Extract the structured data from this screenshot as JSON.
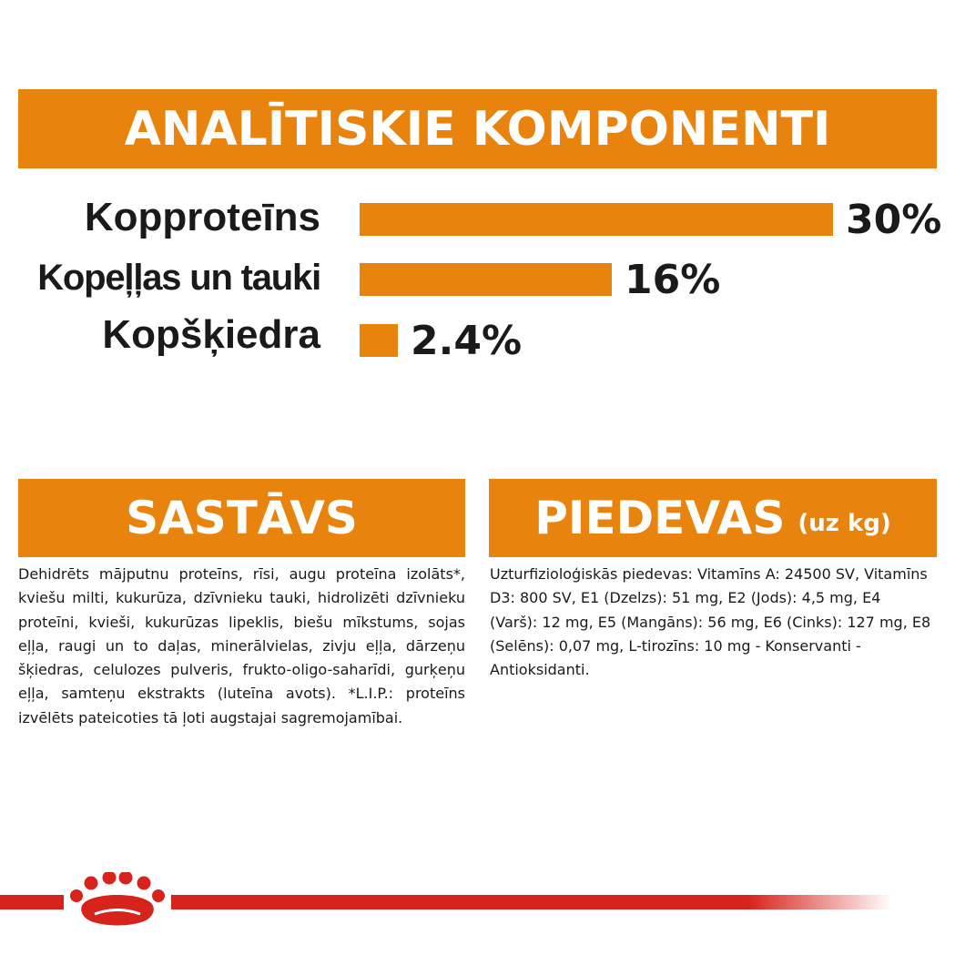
{
  "header": {
    "title": "ANALĪTISKIE KOMPONENTI"
  },
  "chart_data": {
    "type": "bar",
    "orientation": "horizontal",
    "categories": [
      "Kopproteīns",
      "Kopeļļas un tauki",
      "Kopšķiedra"
    ],
    "values": [
      30,
      16,
      2.4
    ],
    "value_labels": [
      "30%",
      "16%",
      "2.4%"
    ],
    "unit": "%",
    "xlim": [
      0,
      30
    ],
    "color": "#e8830d",
    "grid": false
  },
  "sastavs": {
    "title": "SASTĀVS",
    "text": "Dehidrēts mājputnu proteīns, rīsi, augu proteīna izolāts*, kviešu milti, kukurūza, dzīvnieku tauki, hidrolizēti dzīvnieku proteīni, kvieši, kukurūzas lipeklis, biešu mīkstums, sojas eļļa, raugi un to daļas, minerālvielas, zivju eļļa, dārzeņu šķiedras, celulozes pulveris, frukto-oligo-saharīdi, gurķeņu eļļa, samteņu ekstrakts (luteīna avots). *L.I.P.: proteīns izvēlēts pateicoties tā ļoti augstajai sagremojamībai."
  },
  "piedevas": {
    "title": "PIEDEVAS",
    "title_suffix": "(uz kg)",
    "text": "Uzturfizioloģiskās piedevas: Vitamīns A: 24500 SV, Vitamīns D3: 800 SV, E1 (Dzelzs): 51 mg, E2 (Jods): 4,5 mg, E4 (Varš): 12 mg, E5 (Mangāns): 56 mg, E6 (Cinks): 127 mg, E8 (Selēns): 0,07 mg, L-tirozīns: 10 mg - Konservanti - Antioksidanti."
  },
  "footer": {
    "logo_icon": "royal-canin-crown-icon",
    "accent_color": "#d6231b"
  }
}
